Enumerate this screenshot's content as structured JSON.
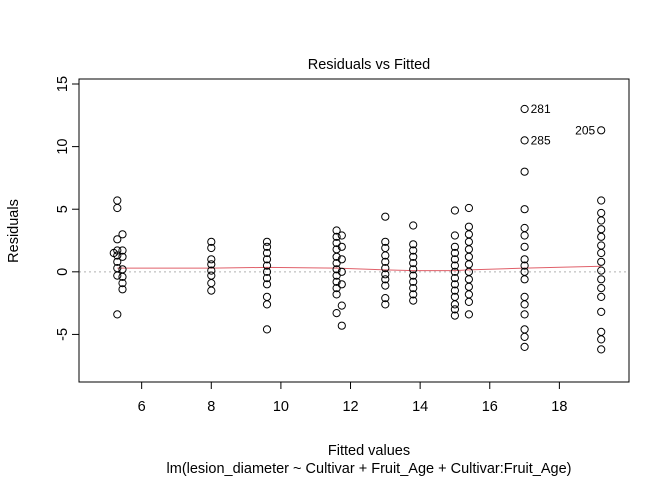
{
  "chart_data": {
    "type": "scatter",
    "title": "Residuals vs Fitted",
    "xlabel": "Fitted values",
    "ylabel": "Residuals",
    "subtitle": "lm(lesion_diameter ~ Cultivar + Fruit_Age + Cultivar:Fruit_Age)",
    "xlim": [
      4.2,
      20.0
    ],
    "ylim": [
      -8.8,
      15.4
    ],
    "x_ticks": [
      6,
      8,
      10,
      12,
      14,
      16,
      18
    ],
    "y_ticks": [
      -5,
      0,
      5,
      10,
      15
    ],
    "grid": false,
    "reference_line": {
      "y": 0,
      "style": "dotted",
      "color": "#b0b0b0"
    },
    "smoother": {
      "color": "#e0606a",
      "points": [
        [
          5.3,
          0.3
        ],
        [
          8.0,
          0.3
        ],
        [
          9.6,
          0.35
        ],
        [
          11.6,
          0.3
        ],
        [
          13.0,
          0.15
        ],
        [
          13.8,
          0.1
        ],
        [
          15.0,
          0.1
        ],
        [
          15.4,
          0.15
        ],
        [
          17.0,
          0.3
        ],
        [
          19.2,
          0.45
        ]
      ]
    },
    "series": [
      {
        "points": [
          [
            5.3,
            5.7
          ],
          [
            5.3,
            5.1
          ],
          [
            5.3,
            2.6
          ],
          [
            5.3,
            1.7
          ],
          [
            5.3,
            1.3
          ],
          [
            5.3,
            0.8
          ],
          [
            5.3,
            0.3
          ],
          [
            5.3,
            -0.3
          ],
          [
            5.3,
            -3.4
          ],
          [
            5.2,
            1.5
          ],
          [
            5.45,
            3.0
          ],
          [
            5.45,
            1.7
          ],
          [
            5.45,
            1.2
          ],
          [
            5.45,
            0.2
          ],
          [
            5.45,
            -0.4
          ],
          [
            5.45,
            -0.9
          ],
          [
            5.45,
            -1.4
          ],
          [
            8.0,
            2.4
          ],
          [
            8.0,
            1.9
          ],
          [
            8.0,
            1.0
          ],
          [
            8.0,
            0.6
          ],
          [
            8.0,
            0.1
          ],
          [
            8.0,
            -0.3
          ],
          [
            8.0,
            -0.9
          ],
          [
            8.0,
            -1.5
          ],
          [
            9.6,
            2.4
          ],
          [
            9.6,
            2.0
          ],
          [
            9.6,
            1.5
          ],
          [
            9.6,
            1.0
          ],
          [
            9.6,
            0.5
          ],
          [
            9.6,
            0.0
          ],
          [
            9.6,
            -0.5
          ],
          [
            9.6,
            -1.0
          ],
          [
            9.6,
            -2.0
          ],
          [
            9.6,
            -2.6
          ],
          [
            9.6,
            -4.6
          ],
          [
            11.6,
            3.3
          ],
          [
            11.6,
            2.8
          ],
          [
            11.6,
            2.3
          ],
          [
            11.6,
            1.8
          ],
          [
            11.6,
            1.2
          ],
          [
            11.6,
            0.7
          ],
          [
            11.6,
            0.2
          ],
          [
            11.6,
            -0.3
          ],
          [
            11.6,
            -0.8
          ],
          [
            11.6,
            -1.3
          ],
          [
            11.6,
            -1.8
          ],
          [
            11.6,
            -3.3
          ],
          [
            11.75,
            2.9
          ],
          [
            11.75,
            2.0
          ],
          [
            11.75,
            1.0
          ],
          [
            11.75,
            0.0
          ],
          [
            11.75,
            -1.0
          ],
          [
            11.75,
            -2.7
          ],
          [
            11.75,
            -4.3
          ],
          [
            13.0,
            4.4
          ],
          [
            13.0,
            2.4
          ],
          [
            13.0,
            1.9
          ],
          [
            13.0,
            1.3
          ],
          [
            13.0,
            0.8
          ],
          [
            13.0,
            0.3
          ],
          [
            13.0,
            -0.2
          ],
          [
            13.0,
            -0.6
          ],
          [
            13.0,
            -1.1
          ],
          [
            13.0,
            -2.1
          ],
          [
            13.0,
            -2.6
          ],
          [
            13.8,
            3.7
          ],
          [
            13.8,
            2.2
          ],
          [
            13.8,
            1.7
          ],
          [
            13.8,
            1.2
          ],
          [
            13.8,
            0.7
          ],
          [
            13.8,
            0.2
          ],
          [
            13.8,
            -0.3
          ],
          [
            13.8,
            -0.8
          ],
          [
            13.8,
            -1.3
          ],
          [
            13.8,
            -1.8
          ],
          [
            13.8,
            -2.3
          ],
          [
            15.0,
            4.9
          ],
          [
            15.0,
            2.9
          ],
          [
            15.0,
            2.0
          ],
          [
            15.0,
            1.5
          ],
          [
            15.0,
            1.0
          ],
          [
            15.0,
            0.5
          ],
          [
            15.0,
            0.0
          ],
          [
            15.0,
            -0.5
          ],
          [
            15.0,
            -1.0
          ],
          [
            15.0,
            -1.5
          ],
          [
            15.0,
            -2.0
          ],
          [
            15.0,
            -2.6
          ],
          [
            15.0,
            -3.0
          ],
          [
            15.0,
            -3.5
          ],
          [
            15.4,
            5.1
          ],
          [
            15.4,
            3.6
          ],
          [
            15.4,
            3.0
          ],
          [
            15.4,
            2.4
          ],
          [
            15.4,
            1.8
          ],
          [
            15.4,
            1.2
          ],
          [
            15.4,
            0.6
          ],
          [
            15.4,
            0.0
          ],
          [
            15.4,
            -0.6
          ],
          [
            15.4,
            -1.2
          ],
          [
            15.4,
            -1.8
          ],
          [
            15.4,
            -2.4
          ],
          [
            15.4,
            -3.4
          ],
          [
            17.0,
            13.0
          ],
          [
            17.0,
            10.5
          ],
          [
            17.0,
            8.0
          ],
          [
            17.0,
            5.0
          ],
          [
            17.0,
            3.5
          ],
          [
            17.0,
            2.9
          ],
          [
            17.0,
            2.0
          ],
          [
            17.0,
            1.0
          ],
          [
            17.0,
            0.5
          ],
          [
            17.0,
            0.0
          ],
          [
            17.0,
            -0.6
          ],
          [
            17.0,
            -2.0
          ],
          [
            17.0,
            -2.6
          ],
          [
            17.0,
            -3.4
          ],
          [
            17.0,
            -4.6
          ],
          [
            17.0,
            -5.2
          ],
          [
            17.0,
            -6.0
          ],
          [
            19.2,
            11.3
          ],
          [
            19.2,
            5.7
          ],
          [
            19.2,
            4.7
          ],
          [
            19.2,
            4.1
          ],
          [
            19.2,
            3.4
          ],
          [
            19.2,
            2.8
          ],
          [
            19.2,
            2.1
          ],
          [
            19.2,
            1.5
          ],
          [
            19.2,
            0.8
          ],
          [
            19.2,
            0.1
          ],
          [
            19.2,
            -0.6
          ],
          [
            19.2,
            -1.3
          ],
          [
            19.2,
            -2.0
          ],
          [
            19.2,
            -3.2
          ],
          [
            19.2,
            -4.8
          ],
          [
            19.2,
            -5.4
          ],
          [
            19.2,
            -6.2
          ]
        ]
      }
    ],
    "point_labels": [
      {
        "text": "281",
        "x": 17.0,
        "y": 13.0,
        "side": "right"
      },
      {
        "text": "285",
        "x": 17.0,
        "y": 10.5,
        "side": "right"
      },
      {
        "text": "205",
        "x": 19.2,
        "y": 11.3,
        "side": "left"
      }
    ]
  }
}
